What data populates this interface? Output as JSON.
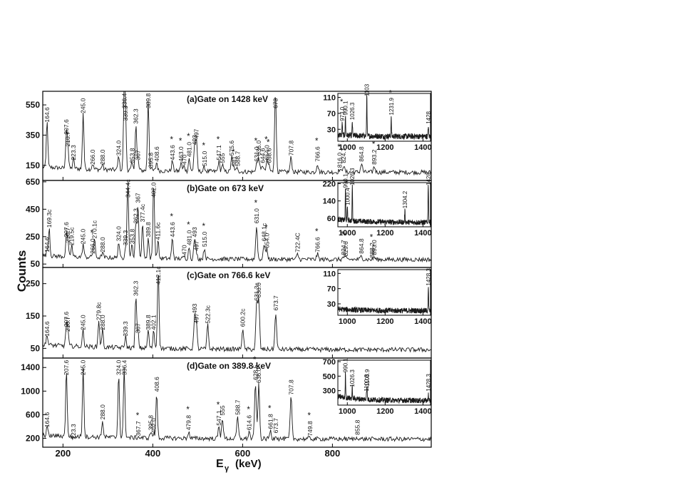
{
  "y_axis_label": "Counts",
  "x_axis_label_main": "E",
  "x_axis_label_sub": "γ",
  "x_axis_label_unit": "(keV)",
  "x_ticks": [
    "200",
    "400",
    "600",
    "800"
  ],
  "inset_x_ticks": [
    "1000",
    "1200",
    "1400"
  ],
  "star_color": "#e0241b",
  "chart_data": [
    {
      "type": "line",
      "title": "(a)Gate on 1428 keV",
      "xlim": [
        155,
        1020
      ],
      "ylim": [
        50,
        640
      ],
      "yticks": [
        150,
        350,
        550
      ],
      "peaks": [
        {
          "e": 164.6,
          "h": 420,
          "label": "164.6"
        },
        {
          "e": 207.6,
          "h": 340,
          "label": "207.6"
        },
        {
          "e": 210.7,
          "h": 260,
          "label": "210.7"
        },
        {
          "e": 223.3,
          "h": 170,
          "label": "223.3"
        },
        {
          "e": 245.0,
          "h": 480,
          "label": "245.0"
        },
        {
          "e": 266.0,
          "h": 140,
          "label": "266.0"
        },
        {
          "e": 288.0,
          "h": 140,
          "label": "288.0"
        },
        {
          "e": 324.0,
          "h": 200,
          "label": "324.0"
        },
        {
          "e": 336.4,
          "h": 640,
          "label": "336.4"
        },
        {
          "e": 339.3,
          "h": 430,
          "label": "339.3"
        },
        {
          "e": 353.8,
          "h": 150,
          "label": "353.8"
        },
        {
          "e": 362.3,
          "h": 410,
          "label": "362.3"
        },
        {
          "e": 367,
          "h": 170,
          "label": "367"
        },
        {
          "e": 389.8,
          "h": 570,
          "label": "389.8"
        },
        {
          "e": 395.8,
          "h": 120,
          "label": "395.8"
        },
        {
          "e": 408.6,
          "h": 160,
          "label": "408.6"
        },
        {
          "e": 443.6,
          "h": 170,
          "label": "443.6",
          "star": true
        },
        {
          "e": 463.0,
          "h": 160,
          "label": "463.0",
          "star": true
        },
        {
          "e": 470,
          "h": 140,
          "label": "470"
        },
        {
          "e": 481.0,
          "h": 190,
          "label": "481.0",
          "star": true
        },
        {
          "e": 493,
          "h": 270,
          "label": "493"
        },
        {
          "e": 497,
          "h": 310,
          "label": "497"
        },
        {
          "e": 515.0,
          "h": 130,
          "label": "515.0",
          "star": true
        },
        {
          "e": 547.1,
          "h": 170,
          "label": "547.1",
          "star": true
        },
        {
          "e": 555,
          "h": 150,
          "label": "555"
        },
        {
          "e": 575.6,
          "h": 200,
          "label": "575.6"
        },
        {
          "e": 581,
          "h": 130,
          "label": "581",
          "star": true
        },
        {
          "e": 588.7,
          "h": 130,
          "label": "588.7"
        },
        {
          "e": 631.0,
          "h": 160,
          "label": "631.0",
          "star": true
        },
        {
          "e": 636.0,
          "h": 200,
          "label": "636.0"
        },
        {
          "e": 644.6,
          "h": 150,
          "label": "644.6"
        },
        {
          "e": 654.0,
          "h": 170,
          "label": "654.0",
          "star": true
        },
        {
          "e": 658.6,
          "h": 150,
          "label": "658.6",
          "star": true
        },
        {
          "e": 673,
          "h": 640,
          "label": "673"
        },
        {
          "e": 707.8,
          "h": 200,
          "label": "707.8"
        },
        {
          "e": 766.6,
          "h": 160,
          "label": "766.6",
          "star": true
        },
        {
          "e": 816.0,
          "h": 120,
          "label": "816.0",
          "star": true
        },
        {
          "e": 824.7,
          "h": 150,
          "label": "824.7",
          "star": true
        },
        {
          "e": 864.8,
          "h": 160,
          "label": "864.8"
        },
        {
          "e": 893.2,
          "h": 140,
          "label": "893.2",
          "star": true
        }
      ],
      "inset": {
        "xlim": [
          950,
          1440
        ],
        "ylim": [
          0,
          120
        ],
        "yticks": [
          30,
          70,
          110
        ],
        "peaks": [
          {
            "e": 973.0,
            "h": 45,
            "label": "973.0",
            "star": true
          },
          {
            "e": 990.1,
            "h": 60,
            "label": "990.1"
          },
          {
            "e": 1026.3,
            "h": 48,
            "label": "1026.3"
          },
          {
            "e": 1103,
            "h": 120,
            "label": "1103"
          },
          {
            "e": 1231.9,
            "h": 60,
            "label": "1231.9",
            "star": true
          },
          {
            "e": 1428,
            "h": 38,
            "label": "1428"
          }
        ]
      }
    },
    {
      "type": "line",
      "title": "(b)Gate on 673 keV",
      "xlim": [
        155,
        1020
      ],
      "ylim": [
        25,
        660
      ],
      "yticks": [
        50,
        250,
        450,
        650
      ],
      "peaks": [
        {
          "e": 164.6,
          "h": 120,
          "label": "164.6"
        },
        {
          "e": 169.3,
          "h": 300,
          "label": "169.3c"
        },
        {
          "e": 207.6,
          "h": 230,
          "label": "207.6"
        },
        {
          "e": 210.7,
          "h": 190,
          "label": "210.7"
        },
        {
          "e": 219.5,
          "h": 170,
          "label": "219.5c"
        },
        {
          "e": 245.0,
          "h": 180,
          "label": "245.0"
        },
        {
          "e": 266.0,
          "h": 110,
          "label": "266.0",
          "star": true
        },
        {
          "e": 270.1,
          "h": 220,
          "label": "270.1c"
        },
        {
          "e": 288.0,
          "h": 120,
          "label": "288.0"
        },
        {
          "e": 324.0,
          "h": 200,
          "label": "324.0"
        },
        {
          "e": 339.3,
          "h": 170,
          "label": "339.3"
        },
        {
          "e": 344.4,
          "h": 650,
          "label": "344.4c"
        },
        {
          "e": 353.8,
          "h": 180,
          "label": "353.8"
        },
        {
          "e": 362.3,
          "h": 330,
          "label": "362.3"
        },
        {
          "e": 367,
          "h": 480,
          "label": "367"
        },
        {
          "e": 377.4,
          "h": 340,
          "label": "377.4c"
        },
        {
          "e": 389.8,
          "h": 230,
          "label": "389.8"
        },
        {
          "e": 402.0,
          "h": 650,
          "label": "402.0"
        },
        {
          "e": 411.6,
          "h": 210,
          "label": "411.6c"
        },
        {
          "e": 443.6,
          "h": 230,
          "label": "443.6",
          "star": true
        },
        {
          "e": 470,
          "h": 100,
          "label": "470"
        },
        {
          "e": 481.0,
          "h": 170,
          "label": "481.0",
          "star": true
        },
        {
          "e": 493,
          "h": 230,
          "label": "493"
        },
        {
          "e": 497,
          "h": 130,
          "label": "497"
        },
        {
          "e": 515.0,
          "h": 160,
          "label": "515.0",
          "star": true
        },
        {
          "e": 631.0,
          "h": 330,
          "label": "631.0",
          "star": true
        },
        {
          "e": 648.1,
          "h": 200,
          "label": "648.1c"
        },
        {
          "e": 654.0,
          "h": 150,
          "label": "654.0",
          "star": true
        },
        {
          "e": 722.4,
          "h": 120,
          "label": "722.4C"
        },
        {
          "e": 766.6,
          "h": 120,
          "label": "766.6",
          "star": true
        },
        {
          "e": 824.7,
          "h": 100,
          "label": "824.7",
          "star": true
        },
        {
          "e": 829.6,
          "h": 90,
          "label": "829.6",
          "star": true
        },
        {
          "e": 864.8,
          "h": 110,
          "label": "864.8"
        },
        {
          "e": 888.2,
          "h": 80,
          "label": "888.2",
          "star": true
        },
        {
          "e": 893.0,
          "h": 100,
          "label": "893.0"
        }
      ],
      "inset": {
        "xlim": [
          950,
          1440
        ],
        "ylim": [
          20,
          225
        ],
        "yticks": [
          60,
          140,
          220
        ],
        "peaks": [
          {
            "e": 990.1,
            "h": 190,
            "label": "990.1"
          },
          {
            "e": 1000.4,
            "h": 110,
            "label": "1000.4",
            "star": true
          },
          {
            "e": 1026.3,
            "h": 210,
            "label": "1026.3"
          },
          {
            "e": 1304.2,
            "h": 95,
            "label": "1304.2"
          },
          {
            "e": 1428,
            "h": 225,
            "label": "1428"
          }
        ]
      }
    },
    {
      "type": "line",
      "title": "(c)Gate on 766.6 keV",
      "xlim": [
        155,
        1020
      ],
      "ylim": [
        20,
        300
      ],
      "yticks": [
        50,
        150,
        250
      ],
      "peaks": [
        {
          "e": 164.6,
          "h": 80,
          "label": "164.6"
        },
        {
          "e": 207.6,
          "h": 110,
          "label": "207.6"
        },
        {
          "e": 210.7,
          "h": 95,
          "label": "210.7"
        },
        {
          "e": 245.0,
          "h": 100,
          "label": "245.0"
        },
        {
          "e": 279.8,
          "h": 130,
          "label": "279.8c"
        },
        {
          "e": 288.0,
          "h": 100,
          "label": "288.0"
        },
        {
          "e": 339.3,
          "h": 80,
          "label": "339.3"
        },
        {
          "e": 362.3,
          "h": 205,
          "label": "362.3"
        },
        {
          "e": 367,
          "h": 90,
          "label": "367"
        },
        {
          "e": 389.8,
          "h": 100,
          "label": "389.8"
        },
        {
          "e": 402.1,
          "h": 100,
          "label": "402.1"
        },
        {
          "e": 412.1,
          "h": 300,
          "label": "412.1c"
        },
        {
          "e": 493,
          "h": 150,
          "label": "493"
        },
        {
          "e": 497,
          "h": 120,
          "label": "497"
        },
        {
          "e": 522.3,
          "h": 120,
          "label": "522.3c"
        },
        {
          "e": 600.2,
          "h": 110,
          "label": "600.2c"
        },
        {
          "e": 631.3,
          "h": 190,
          "label": "631.3c"
        },
        {
          "e": 636.0,
          "h": 200,
          "label": "636.0"
        },
        {
          "e": 673.7,
          "h": 160,
          "label": "673.7"
        }
      ],
      "inset": {
        "xlim": [
          950,
          1440
        ],
        "ylim": [
          0,
          120
        ],
        "yticks": [
          30,
          70,
          110
        ],
        "peaks": [
          {
            "e": 1428.3,
            "h": 72,
            "label": "1428.3"
          }
        ]
      }
    },
    {
      "type": "line",
      "title": "(d)Gate on 389.8 keV",
      "xlim": [
        155,
        1020
      ],
      "ylim": [
        50,
        1560
      ],
      "yticks": [
        200,
        600,
        1000,
        1400
      ],
      "peaks": [
        {
          "e": 164.6,
          "h": 350,
          "label": "164.6"
        },
        {
          "e": 207.6,
          "h": 1350,
          "label": "207.6"
        },
        {
          "e": 223.3,
          "h": 150,
          "label": "223.3"
        },
        {
          "e": 245.0,
          "h": 1380,
          "label": "245.0"
        },
        {
          "e": 288.0,
          "h": 480,
          "label": "288.0"
        },
        {
          "e": 324.0,
          "h": 1300,
          "label": "324.0"
        },
        {
          "e": 336.4,
          "h": 1380,
          "label": "336.4"
        },
        {
          "e": 367.7,
          "h": 200,
          "label": "367.7",
          "star": true
        },
        {
          "e": 395.8,
          "h": 300,
          "label": "395.8"
        },
        {
          "e": 402.0,
          "h": 250,
          "label": "402.0"
        },
        {
          "e": 408.6,
          "h": 950,
          "label": "408.6"
        },
        {
          "e": 479.8,
          "h": 300,
          "label": "479.8",
          "star": true
        },
        {
          "e": 547.1,
          "h": 380,
          "label": "547.1",
          "star": true
        },
        {
          "e": 555,
          "h": 550,
          "label": "555"
        },
        {
          "e": 588.7,
          "h": 560,
          "label": "588.7"
        },
        {
          "e": 614.6,
          "h": 300,
          "label": "614.6",
          "star": true
        },
        {
          "e": 628.5,
          "h": 1150,
          "label": "628.5",
          "star": true
        },
        {
          "e": 636.0,
          "h": 1100,
          "label": "636.0"
        },
        {
          "e": 661.8,
          "h": 320,
          "label": "661.8",
          "star": true
        },
        {
          "e": 673.7,
          "h": 250,
          "label": "673.7"
        },
        {
          "e": 707.8,
          "h": 900,
          "label": "707.8"
        },
        {
          "e": 749.8,
          "h": 200,
          "label": "749.8",
          "star": true
        },
        {
          "e": 855.8,
          "h": 220,
          "label": "855.8"
        }
      ],
      "inset": {
        "xlim": [
          950,
          1440
        ],
        "ylim": [
          100,
          720
        ],
        "yticks": [
          300,
          500,
          700
        ],
        "peaks": [
          {
            "e": 990.1,
            "h": 520,
            "label": "990.1"
          },
          {
            "e": 1026.3,
            "h": 320,
            "label": "1026.3"
          },
          {
            "e": 1100.8,
            "h": 260,
            "label": "1100.8"
          },
          {
            "e": 1103.9,
            "h": 330,
            "label": "1103.9"
          },
          {
            "e": 1428.3,
            "h": 260,
            "label": "1428.3"
          }
        ]
      }
    }
  ]
}
